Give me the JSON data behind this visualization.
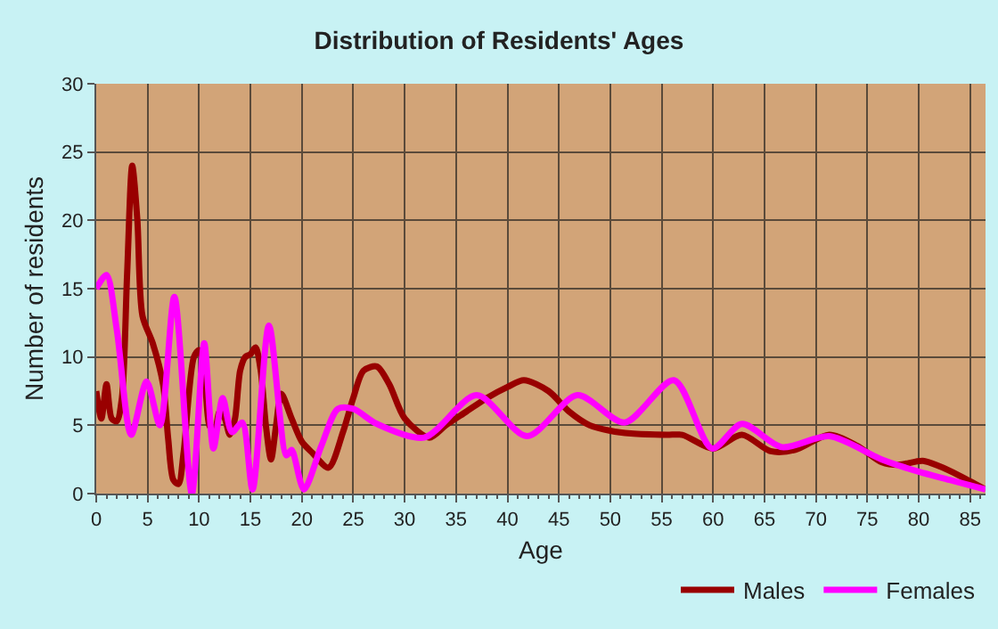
{
  "chart_data": {
    "type": "line",
    "title": "Distribution of Residents' Ages",
    "xlabel": "Age",
    "ylabel": "Number of residents",
    "xlim": [
      0,
      86.5
    ],
    "xticks": [
      0,
      5,
      10,
      15,
      20,
      25,
      30,
      35,
      40,
      45,
      50,
      55,
      60,
      65,
      70,
      75,
      80,
      85
    ],
    "ylim": [
      0,
      30
    ],
    "yticks": [
      0,
      5,
      10,
      15,
      20,
      25,
      30
    ],
    "grid": true,
    "legend": "bottom right",
    "marker": "none",
    "line_style": "solid",
    "series": [
      {
        "name": "Males",
        "color": "#990000",
        "x": [
          0,
          0.5,
          1,
          1.5,
          2,
          2.5,
          3,
          3.5,
          4,
          4.5,
          5.5,
          6.5,
          7,
          7.5,
          8,
          8.5,
          9.5,
          10,
          10.5,
          11,
          11.5,
          12,
          12.5,
          13,
          13.5,
          14,
          14.5,
          15,
          15.5,
          16,
          16.5,
          17,
          17.5,
          18,
          19,
          20,
          21,
          22.6,
          24,
          25,
          26,
          27.3,
          28.5,
          30,
          32.4,
          34,
          36,
          38,
          40,
          41.6,
          44,
          46,
          48,
          50,
          52,
          55.5,
          57,
          60,
          62.8,
          65.6,
          68,
          71.3,
          74,
          76.4,
          78,
          80.4,
          82,
          84,
          86.5
        ],
        "values": [
          7.5,
          5.5,
          8,
          5.5,
          5.3,
          7,
          16,
          24,
          20,
          13,
          11,
          8,
          4,
          1,
          0.7,
          3,
          10,
          10.5,
          9,
          5,
          4.5,
          6,
          5.5,
          4.3,
          5.5,
          9,
          10,
          10.2,
          10.7,
          9,
          5,
          2.5,
          5,
          7.3,
          5.5,
          3.8,
          3,
          1.9,
          4.5,
          7,
          9,
          9.3,
          8,
          5.5,
          4.1,
          5,
          6,
          7,
          7.8,
          8.3,
          7.5,
          6,
          5,
          4.6,
          4.4,
          4.3,
          4.3,
          3.3,
          4.3,
          3.1,
          3.2,
          4.3,
          3.5,
          2.3,
          2.1,
          2.4,
          2,
          1.3,
          0.3
        ]
      },
      {
        "name": "Females",
        "color": "#ff00ff",
        "x": [
          0,
          1,
          2,
          3.4,
          4.9,
          6.2,
          7.6,
          9.3,
          10.5,
          11.4,
          12.3,
          13.2,
          14.2,
          15.2,
          16.8,
          18.5,
          19,
          20.2,
          21.9,
          23.5,
          25,
          27.3,
          31.9,
          37,
          41.9,
          46.8,
          51.4,
          56.2,
          59.9,
          62.8,
          66.7,
          71.3,
          76.4,
          80,
          83,
          86.5
        ],
        "values": [
          15,
          16,
          12,
          4.3,
          8.2,
          5,
          14.4,
          0,
          11,
          3.3,
          7,
          4.5,
          5.2,
          0.3,
          12.3,
          2.8,
          3.2,
          0.3,
          3.5,
          6.2,
          6.2,
          5.1,
          4.1,
          7.2,
          4.2,
          7.2,
          5.2,
          8.3,
          3.3,
          5.1,
          3.4,
          4.2,
          2.5,
          1.6,
          1,
          0.3
        ]
      }
    ]
  }
}
